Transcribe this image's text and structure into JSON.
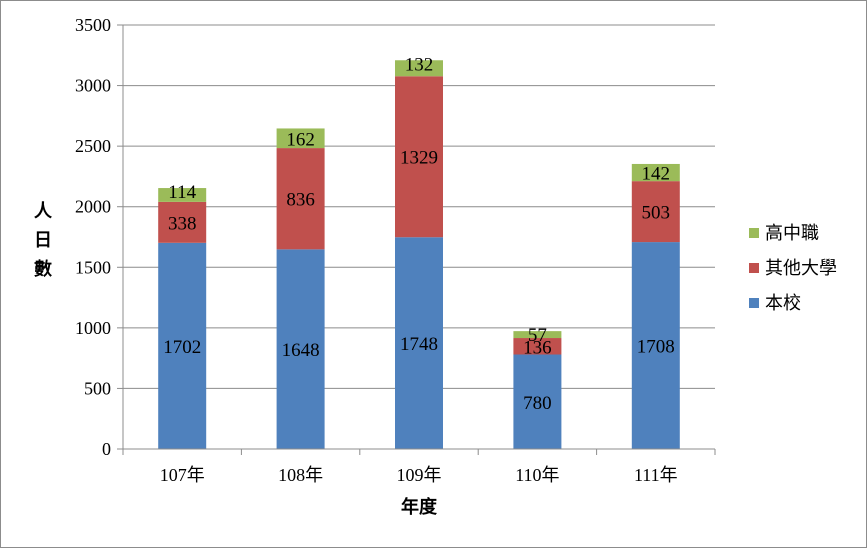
{
  "chart_data": {
    "type": "bar",
    "stacked": true,
    "categories": [
      "107年",
      "108年",
      "109年",
      "110年",
      "111年"
    ],
    "series": [
      {
        "name": "本校",
        "color": "#4f81bd",
        "values": [
          1702,
          1648,
          1748,
          780,
          1708
        ]
      },
      {
        "name": "其他大學",
        "color": "#c0504d",
        "values": [
          338,
          836,
          1329,
          136,
          503
        ]
      },
      {
        "name": "高中職",
        "color": "#9bbb59",
        "values": [
          114,
          162,
          132,
          57,
          142
        ]
      }
    ],
    "title": "",
    "xlabel": "年度",
    "ylabel": "人日數",
    "ylim": [
      0,
      3500
    ],
    "yticks": [
      0,
      500,
      1000,
      1500,
      2000,
      2500,
      3000,
      3500
    ],
    "grid": true,
    "legend": "right",
    "legend_order": [
      "高中職",
      "其他大學",
      "本校"
    ]
  }
}
